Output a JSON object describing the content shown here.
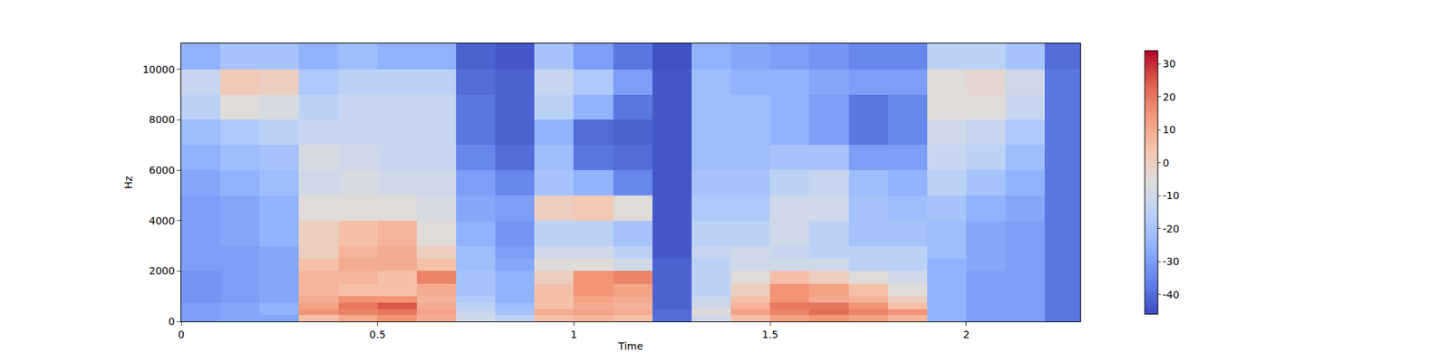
{
  "chart_data": {
    "type": "heatmap",
    "xlabel": "Time",
    "ylabel": "Hz",
    "xlim": [
      0,
      2.29
    ],
    "ylim": [
      0,
      11025
    ],
    "xticks": [
      0,
      0.5,
      1,
      1.5,
      2
    ],
    "yticks": [
      0,
      2000,
      4000,
      6000,
      8000,
      10000
    ],
    "x_bins": [
      0,
      0.1,
      0.2,
      0.3,
      0.4,
      0.5,
      0.6,
      0.7,
      0.8,
      0.9,
      1.0,
      1.1,
      1.2,
      1.3,
      1.4,
      1.5,
      1.6,
      1.7,
      1.8,
      1.9,
      2.0,
      2.1,
      2.2,
      2.29
    ],
    "y_bins": [
      0,
      250,
      500,
      750,
      1000,
      1500,
      2000,
      2500,
      3000,
      4000,
      5000,
      6000,
      7000,
      8000,
      9000,
      10000,
      11025
    ],
    "cells": [
      [
        -30,
        -28,
        -28,
        5,
        10,
        15,
        10,
        -10,
        -15,
        5,
        8,
        5,
        -40,
        -10,
        5,
        12,
        15,
        12,
        8,
        -25,
        -30,
        -30,
        -38
      ],
      [
        -30,
        -28,
        -25,
        15,
        18,
        20,
        12,
        -12,
        -20,
        10,
        12,
        10,
        -40,
        -5,
        12,
        18,
        22,
        18,
        15,
        -25,
        -30,
        -30,
        -38
      ],
      [
        -30,
        -28,
        -25,
        12,
        20,
        25,
        10,
        -15,
        -22,
        5,
        10,
        8,
        -42,
        -10,
        8,
        20,
        20,
        15,
        5,
        -25,
        -30,
        -30,
        -38
      ],
      [
        -32,
        -30,
        -28,
        10,
        15,
        15,
        8,
        -18,
        -25,
        5,
        12,
        10,
        -42,
        -12,
        5,
        15,
        10,
        8,
        0,
        -25,
        -30,
        -30,
        -38
      ],
      [
        -32,
        -30,
        -28,
        8,
        5,
        5,
        10,
        -20,
        -25,
        5,
        15,
        12,
        -42,
        -15,
        0,
        15,
        12,
        5,
        -5,
        -25,
        -30,
        -30,
        -38
      ],
      [
        -32,
        -30,
        -28,
        8,
        8,
        5,
        18,
        -20,
        -25,
        0,
        15,
        18,
        -42,
        -15,
        -5,
        5,
        0,
        -5,
        -10,
        -25,
        -30,
        -30,
        -38
      ],
      [
        -30,
        -30,
        -28,
        5,
        10,
        10,
        5,
        -22,
        -28,
        -5,
        -5,
        -10,
        -42,
        -15,
        -10,
        -10,
        -10,
        -15,
        -15,
        -25,
        -28,
        -30,
        -38
      ],
      [
        -30,
        -30,
        -28,
        0,
        8,
        10,
        0,
        -22,
        -30,
        -10,
        -10,
        -15,
        -44,
        -12,
        -10,
        -12,
        -15,
        -15,
        -15,
        -22,
        -28,
        -30,
        -38
      ],
      [
        -30,
        -28,
        -25,
        0,
        5,
        8,
        -5,
        -25,
        -32,
        -15,
        -15,
        -20,
        -44,
        -15,
        -15,
        -10,
        -15,
        -20,
        -20,
        -22,
        -28,
        -30,
        -38
      ],
      [
        -30,
        -28,
        -25,
        -5,
        -5,
        -5,
        -8,
        -28,
        -30,
        0,
        3,
        -5,
        -44,
        -18,
        -18,
        -10,
        -10,
        -20,
        -22,
        -20,
        -25,
        -28,
        -38
      ],
      [
        -28,
        -25,
        -22,
        -10,
        -8,
        -10,
        -10,
        -30,
        -35,
        -20,
        -25,
        -35,
        -44,
        -20,
        -20,
        -15,
        -12,
        -22,
        -25,
        -15,
        -20,
        -25,
        -38
      ],
      [
        -25,
        -22,
        -20,
        -8,
        -10,
        -12,
        -12,
        -35,
        -40,
        -22,
        -38,
        -40,
        -44,
        -22,
        -22,
        -20,
        -20,
        -30,
        -30,
        -12,
        -15,
        -22,
        -38
      ],
      [
        -22,
        -18,
        -15,
        -12,
        -12,
        -12,
        -12,
        -38,
        -42,
        -25,
        -40,
        -42,
        -44,
        -22,
        -22,
        -25,
        -30,
        -38,
        -35,
        -10,
        -12,
        -18,
        -38
      ],
      [
        -15,
        -5,
        -8,
        -15,
        -12,
        -12,
        -12,
        -38,
        -42,
        -15,
        -25,
        -38,
        -44,
        -22,
        -22,
        -25,
        -30,
        -38,
        -35,
        -5,
        -5,
        -12,
        -38
      ],
      [
        -12,
        2,
        0,
        -18,
        -15,
        -15,
        -15,
        -40,
        -42,
        -12,
        -18,
        -30,
        -44,
        -22,
        -25,
        -25,
        -28,
        -30,
        -30,
        -5,
        -3,
        -10,
        -38
      ],
      [
        -25,
        -20,
        -20,
        -25,
        -22,
        -25,
        -25,
        -42,
        -44,
        -20,
        -30,
        -38,
        -45,
        -25,
        -28,
        -30,
        -32,
        -35,
        -35,
        -15,
        -15,
        -20,
        -40
      ]
    ],
    "zlim": [
      -46,
      34
    ],
    "zticks": [
      -40,
      -30,
      -20,
      -10,
      0,
      10,
      20,
      30
    ]
  }
}
